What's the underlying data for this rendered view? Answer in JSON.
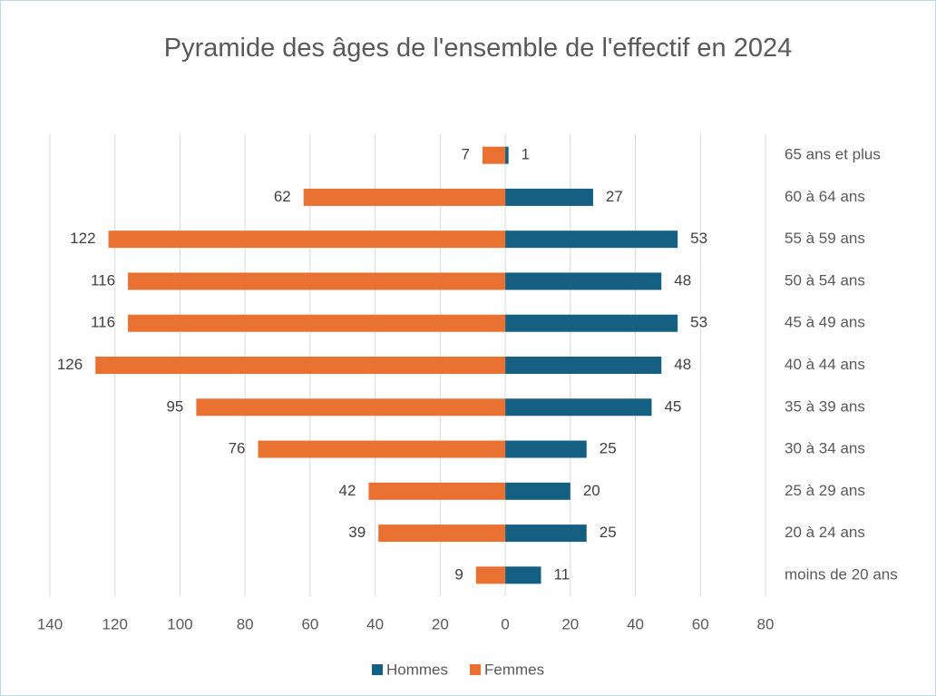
{
  "chart_data": {
    "type": "bar",
    "orientation": "horizontal",
    "title": "Pyramide des âges de l'ensemble de l'effectif en 2024",
    "categories": [
      "65 ans et plus",
      "60 à 64 ans",
      "55 à 59 ans",
      "50 à 54 ans",
      "45 à 49 ans",
      "40 à 44 ans",
      "35 à 39 ans",
      "30 à 34 ans",
      "25 à 29 ans",
      "20 à 24 ans",
      "moins de 20 ans"
    ],
    "series": [
      {
        "name": "Hommes",
        "color": "#156082",
        "values": [
          1,
          27,
          53,
          48,
          53,
          48,
          45,
          25,
          20,
          25,
          11
        ]
      },
      {
        "name": "Femmes",
        "color": "#e97132",
        "values": [
          -7,
          -62,
          -122,
          -116,
          -116,
          -126,
          -95,
          -76,
          -42,
          -39,
          -9
        ],
        "value_labels": [
          "7",
          "62",
          "122",
          "116",
          "116",
          "126",
          "95",
          "76",
          "42",
          "39",
          "9"
        ]
      }
    ],
    "xlim": [
      -140,
      80
    ],
    "xticks": [
      {
        "value": -140,
        "label": "140"
      },
      {
        "value": -120,
        "label": "120"
      },
      {
        "value": -100,
        "label": "100"
      },
      {
        "value": -80,
        "label": "80"
      },
      {
        "value": -60,
        "label": "60"
      },
      {
        "value": -40,
        "label": "40"
      },
      {
        "value": -20,
        "label": "20"
      },
      0,
      20,
      40,
      60,
      80
    ],
    "grid": true,
    "legend": "bottom"
  }
}
